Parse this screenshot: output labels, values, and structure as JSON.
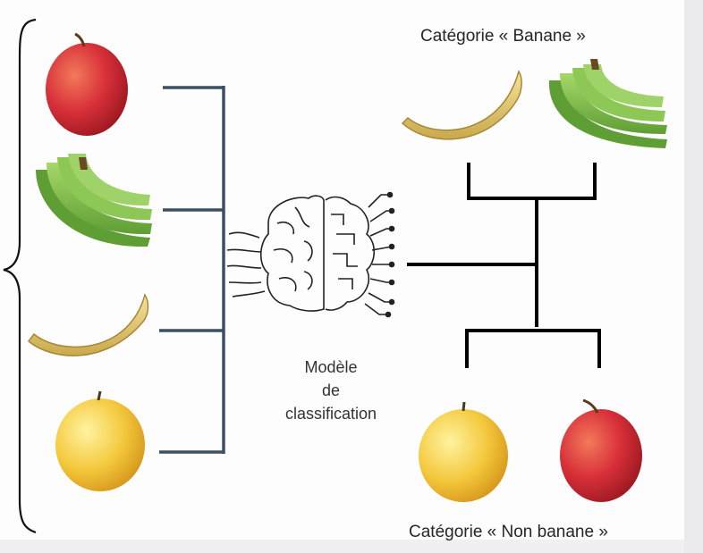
{
  "labels": {
    "category_banana": "Catégorie « Banane »",
    "category_non_banana": "Catégorie « Non banane »",
    "model_line1": "Modèle",
    "model_line2": "de",
    "model_line3": "classification"
  },
  "inputs": [
    {
      "item": "red-apple"
    },
    {
      "item": "green-bananas"
    },
    {
      "item": "yellow-banana"
    },
    {
      "item": "yellow-apple"
    }
  ],
  "outputs": {
    "banana": [
      {
        "item": "yellow-banana"
      },
      {
        "item": "green-bananas"
      }
    ],
    "non_banana": [
      {
        "item": "yellow-apple"
      },
      {
        "item": "red-apple"
      }
    ]
  },
  "colors": {
    "input_connector": "#3c4f63",
    "output_connector": "#000000",
    "red_apple": "#d9303a",
    "yellow_apple": "#f0c43a",
    "green_banana": "#7fbf4a",
    "yellow_banana": "#e8d07a"
  }
}
